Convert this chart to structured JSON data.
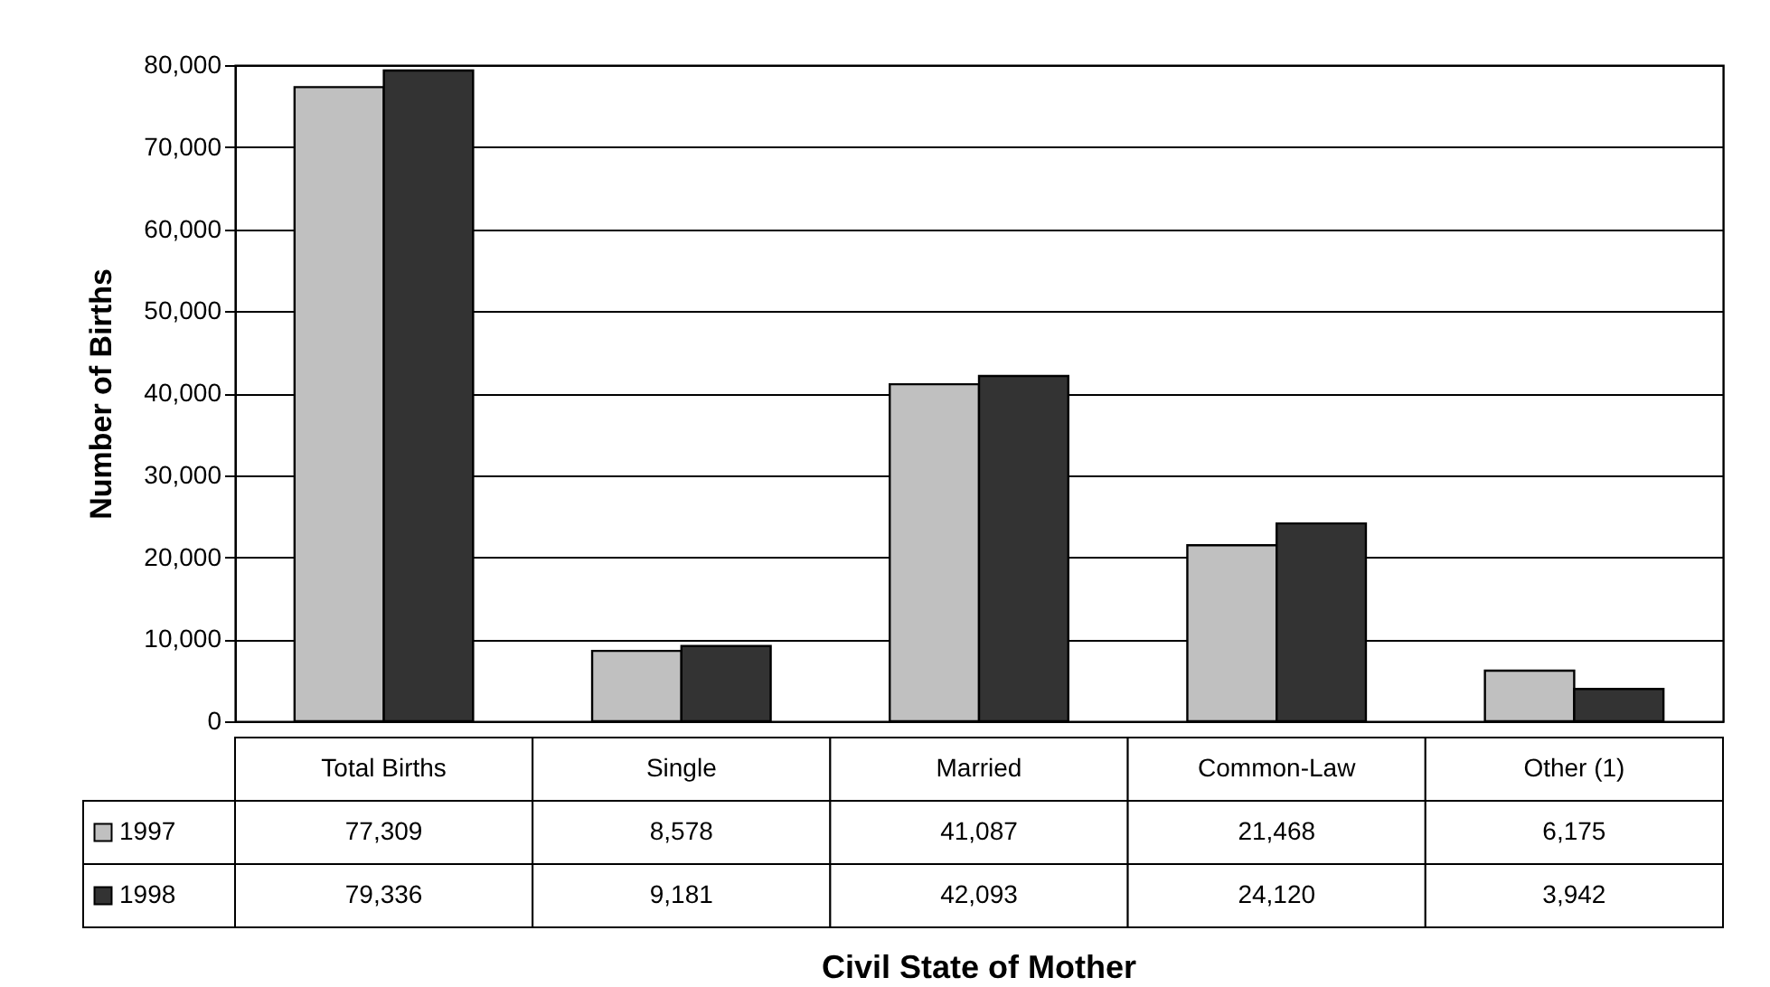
{
  "chart_data": {
    "type": "bar",
    "ylabel": "Number of Births",
    "categories": [
      "Total Births",
      "Single",
      "Married",
      "Common-Law",
      "Other (1)"
    ],
    "series": [
      {
        "name": "1997",
        "color": "#c0c0c0",
        "values": [
          77309,
          8578,
          41087,
          21468,
          6175
        ],
        "value_labels": [
          "77,309",
          "8,578",
          "41,087",
          "21,468",
          "6,175"
        ]
      },
      {
        "name": "1998",
        "color": "#333333",
        "values": [
          79336,
          9181,
          42093,
          24120,
          3942
        ],
        "value_labels": [
          "79,336",
          "9,181",
          "42,093",
          "24,120",
          "3,942"
        ]
      }
    ],
    "ylim": [
      0,
      80000
    ],
    "yticks": [
      0,
      {
        "value": 10000,
        "label": "10,000"
      },
      {
        "value": 20000,
        "label": "20,000"
      },
      {
        "value": 30000,
        "label": "30,000"
      },
      {
        "value": 40000,
        "label": "40,000"
      },
      {
        "value": 50000,
        "label": "50,000"
      },
      {
        "value": 60000,
        "label": "60,000"
      },
      {
        "value": 70000,
        "label": "70,000"
      },
      {
        "value": 80000,
        "label": "80,000"
      }
    ],
    "grid": "y",
    "legend": "bottom",
    "annotations": [
      "Civil State of Mother"
    ]
  }
}
